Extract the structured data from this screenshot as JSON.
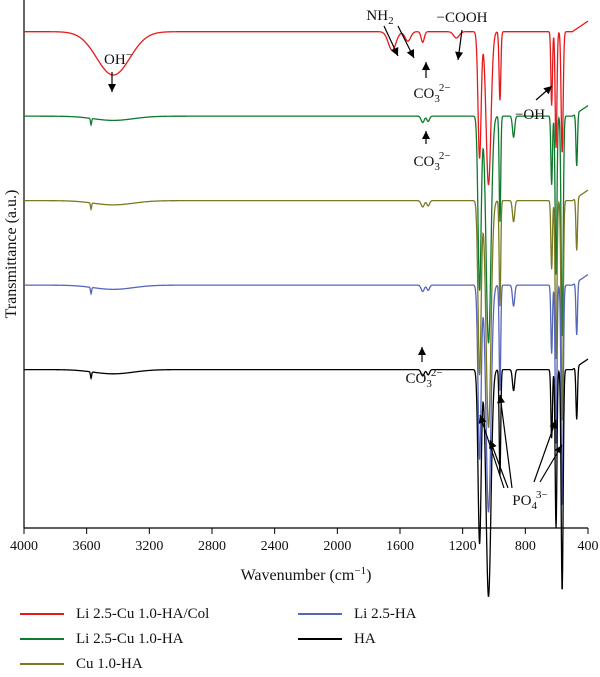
{
  "chart_data": {
    "type": "line",
    "xlabel": "Wavenumber (cm",
    "xlabel_sup": "−1",
    "xlabel_tail": ")",
    "ylabel": "Transmittance (a.u.)",
    "xlim": [
      4000,
      400
    ],
    "x_reversed": true,
    "x_ticks": [
      "4000",
      "3600",
      "3200",
      "2800",
      "2400",
      "2000",
      "1600",
      "1200",
      "800",
      "400"
    ],
    "legend_position": "bottom",
    "series": [
      {
        "name": "Li 2.5-Cu 1.0-HA/Col",
        "color": "#e8191c",
        "baseline": 0.94,
        "profile": "col"
      },
      {
        "name": "Li 2.5-Cu 1.0-HA",
        "color": "#0e7a2e",
        "baseline": 0.78,
        "profile": "ha"
      },
      {
        "name": "Cu 1.0-HA",
        "color": "#7a7a22",
        "baseline": 0.62,
        "profile": "ha"
      },
      {
        "name": "Li 2.5-HA",
        "color": "#5566bb",
        "baseline": 0.46,
        "profile": "ha"
      },
      {
        "name": "HA",
        "color": "#000000",
        "baseline": 0.3,
        "profile": "ha"
      }
    ],
    "annotations": [
      {
        "id": "oh-minus",
        "text": "OH",
        "sup": "−",
        "sub": ""
      },
      {
        "id": "nh2",
        "text": "NH",
        "sub": "2",
        "sup": ""
      },
      {
        "id": "cooh",
        "text": "−COOH",
        "sub": "",
        "sup": ""
      },
      {
        "id": "co3-red",
        "text": "CO",
        "sub": "3",
        "sup": "2−"
      },
      {
        "id": "oh-red",
        "text": "−OH",
        "sub": "",
        "sup": ""
      },
      {
        "id": "co3-green",
        "text": "CO",
        "sub": "3",
        "sup": "2−"
      },
      {
        "id": "co3-black",
        "text": "CO",
        "sub": "3",
        "sup": "2−"
      },
      {
        "id": "po4",
        "text": "PO",
        "sub": "4",
        "sup": "3−"
      }
    ]
  }
}
